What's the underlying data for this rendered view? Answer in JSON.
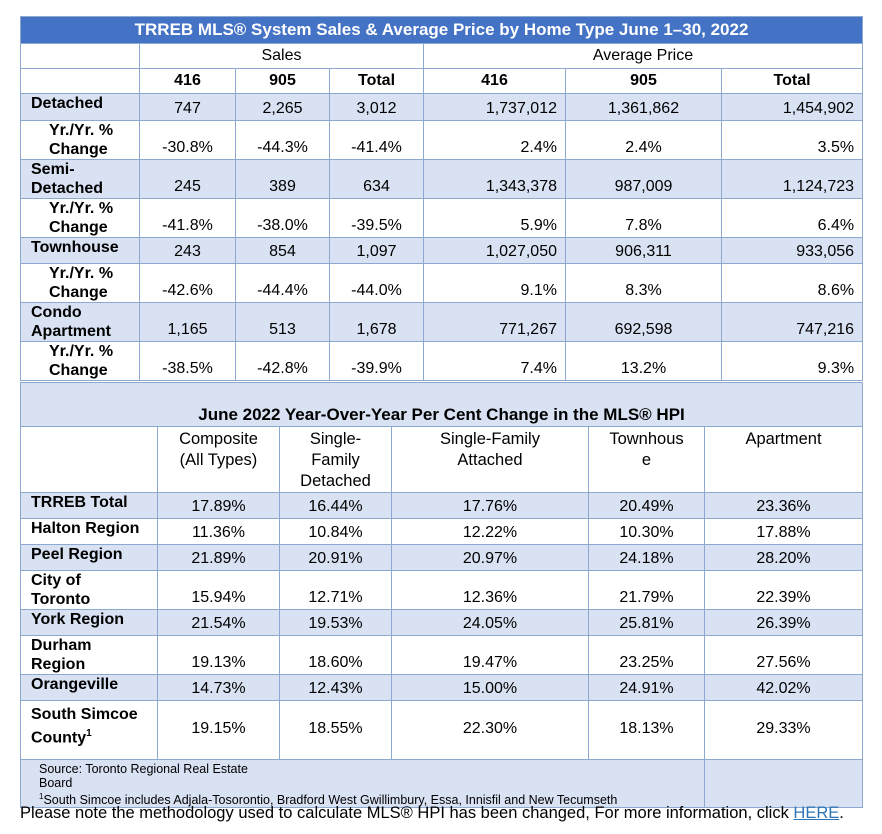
{
  "sales_table": {
    "title": "TRREB MLS® System Sales & Average Price by Home Type June 1–30, 2022",
    "group_headers": [
      "Sales",
      "Average Price"
    ],
    "sub_headers": [
      "416",
      "905",
      "Total",
      "416",
      "905",
      "Total"
    ],
    "rows": [
      {
        "label": [
          "Detached"
        ],
        "values": [
          "747",
          "2,265",
          "3,012",
          "1,737,012",
          "1,361,862",
          "1,454,902"
        ],
        "type": "main"
      },
      {
        "label": [
          "Yr./Yr. %",
          "Change"
        ],
        "values": [
          "-30.8%",
          "-44.3%",
          "-41.4%",
          "2.4%",
          "2.4%",
          "3.5%"
        ],
        "type": "sub"
      },
      {
        "label": [
          "Semi-",
          "Detached"
        ],
        "values": [
          "245",
          "389",
          "634",
          "1,343,378",
          "987,009",
          "1,124,723"
        ],
        "type": "main"
      },
      {
        "label": [
          "Yr./Yr. %",
          "Change"
        ],
        "values": [
          "-41.8%",
          "-38.0%",
          "-39.5%",
          "5.9%",
          "7.8%",
          "6.4%"
        ],
        "type": "sub"
      },
      {
        "label": [
          "Townhouse"
        ],
        "values": [
          "243",
          "854",
          "1,097",
          "1,027,050",
          "906,311",
          "933,056"
        ],
        "type": "main"
      },
      {
        "label": [
          "Yr./Yr. %",
          "Change"
        ],
        "values": [
          "-42.6%",
          "-44.4%",
          "-44.0%",
          "9.1%",
          "8.3%",
          "8.6%"
        ],
        "type": "sub"
      },
      {
        "label": [
          "Condo",
          "Apartment"
        ],
        "values": [
          "1,165",
          "513",
          "1,678",
          "771,267",
          "692,598",
          "747,216"
        ],
        "type": "main"
      },
      {
        "label": [
          "Yr./Yr. %",
          "Change"
        ],
        "values": [
          "-38.5%",
          "-42.8%",
          "-39.9%",
          "7.4%",
          "13.2%",
          "9.3%"
        ],
        "type": "sub"
      }
    ]
  },
  "hpi_table": {
    "title": "June 2022 Year-Over-Year Per Cent Change in the MLS® HPI",
    "column_headers": [
      [
        "Composite",
        "(All Types)"
      ],
      [
        "Single-",
        "Family",
        "Detached"
      ],
      [
        "Single-Family",
        "Attached"
      ],
      [
        "Townhous",
        "e"
      ],
      [
        "Apartment"
      ]
    ],
    "rows": [
      {
        "label": [
          "TRREB Total"
        ],
        "values": [
          "17.89%",
          "16.44%",
          "17.76%",
          "20.49%",
          "23.36%"
        ]
      },
      {
        "label": [
          "Halton Region"
        ],
        "values": [
          "11.36%",
          "10.84%",
          "12.22%",
          "10.30%",
          "17.88%"
        ]
      },
      {
        "label": [
          "Peel Region"
        ],
        "values": [
          "21.89%",
          "20.91%",
          "20.97%",
          "24.18%",
          "28.20%"
        ]
      },
      {
        "label": [
          "City of",
          "Toronto"
        ],
        "values": [
          "15.94%",
          "12.71%",
          "12.36%",
          "21.79%",
          "22.39%"
        ]
      },
      {
        "label": [
          "York Region"
        ],
        "values": [
          "21.54%",
          "19.53%",
          "24.05%",
          "25.81%",
          "26.39%"
        ]
      },
      {
        "label": [
          "Durham",
          "Region"
        ],
        "values": [
          "19.13%",
          "18.60%",
          "19.47%",
          "23.25%",
          "27.56%"
        ]
      },
      {
        "label": [
          "Orangeville"
        ],
        "values": [
          "14.73%",
          "12.43%",
          "15.00%",
          "24.91%",
          "42.02%"
        ]
      },
      {
        "label": [
          "South Simcoe",
          "County"
        ],
        "label_sup": "1",
        "values": [
          "19.15%",
          "18.55%",
          "22.30%",
          "18.13%",
          "29.33%"
        ]
      }
    ],
    "source_line_1": "Source: Toronto Regional Real Estate",
    "source_line_2": "Board",
    "note_sup": "1",
    "note_text": "South Simcoe includes Adjala-Tosorontio, Bradford West Gwillimbury, Essa, Innisfil and New Tecumseth"
  },
  "footnote": {
    "text": "Please note the methodology used to calculate MLS® HPI has been changed, For more information, click ",
    "link_label": "HERE",
    "end": "."
  }
}
